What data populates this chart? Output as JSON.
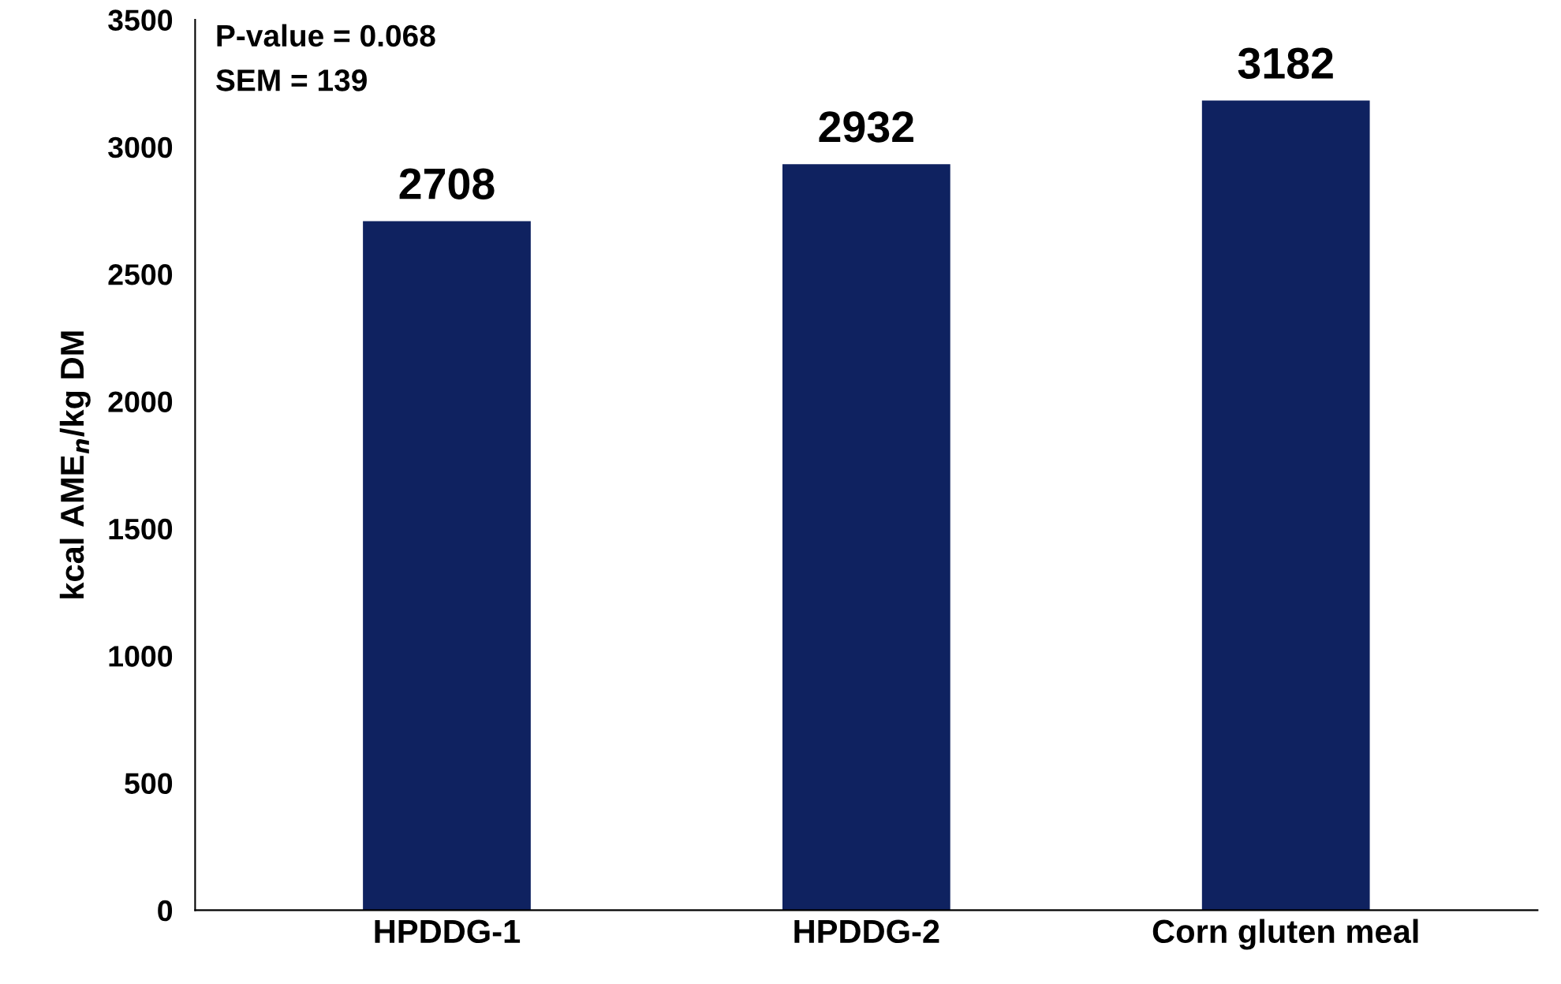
{
  "chart_data": {
    "type": "bar",
    "ylabel": "kcal AME$_{n}$/kg DM",
    "categories": [
      "HPDDG-1",
      "HPDDG-2",
      "Corn gluten meal"
    ],
    "values": [
      2708,
      2932,
      3182
    ],
    "color": "#0f2260",
    "ylim": [
      0,
      3500
    ],
    "yticks": [
      0,
      500,
      1000,
      1500,
      2000,
      2500,
      3000,
      3500
    ],
    "data_labels": true,
    "grid": false,
    "legend": false,
    "annotations": [
      "P-value = 0.068",
      "SEM = 139"
    ]
  }
}
